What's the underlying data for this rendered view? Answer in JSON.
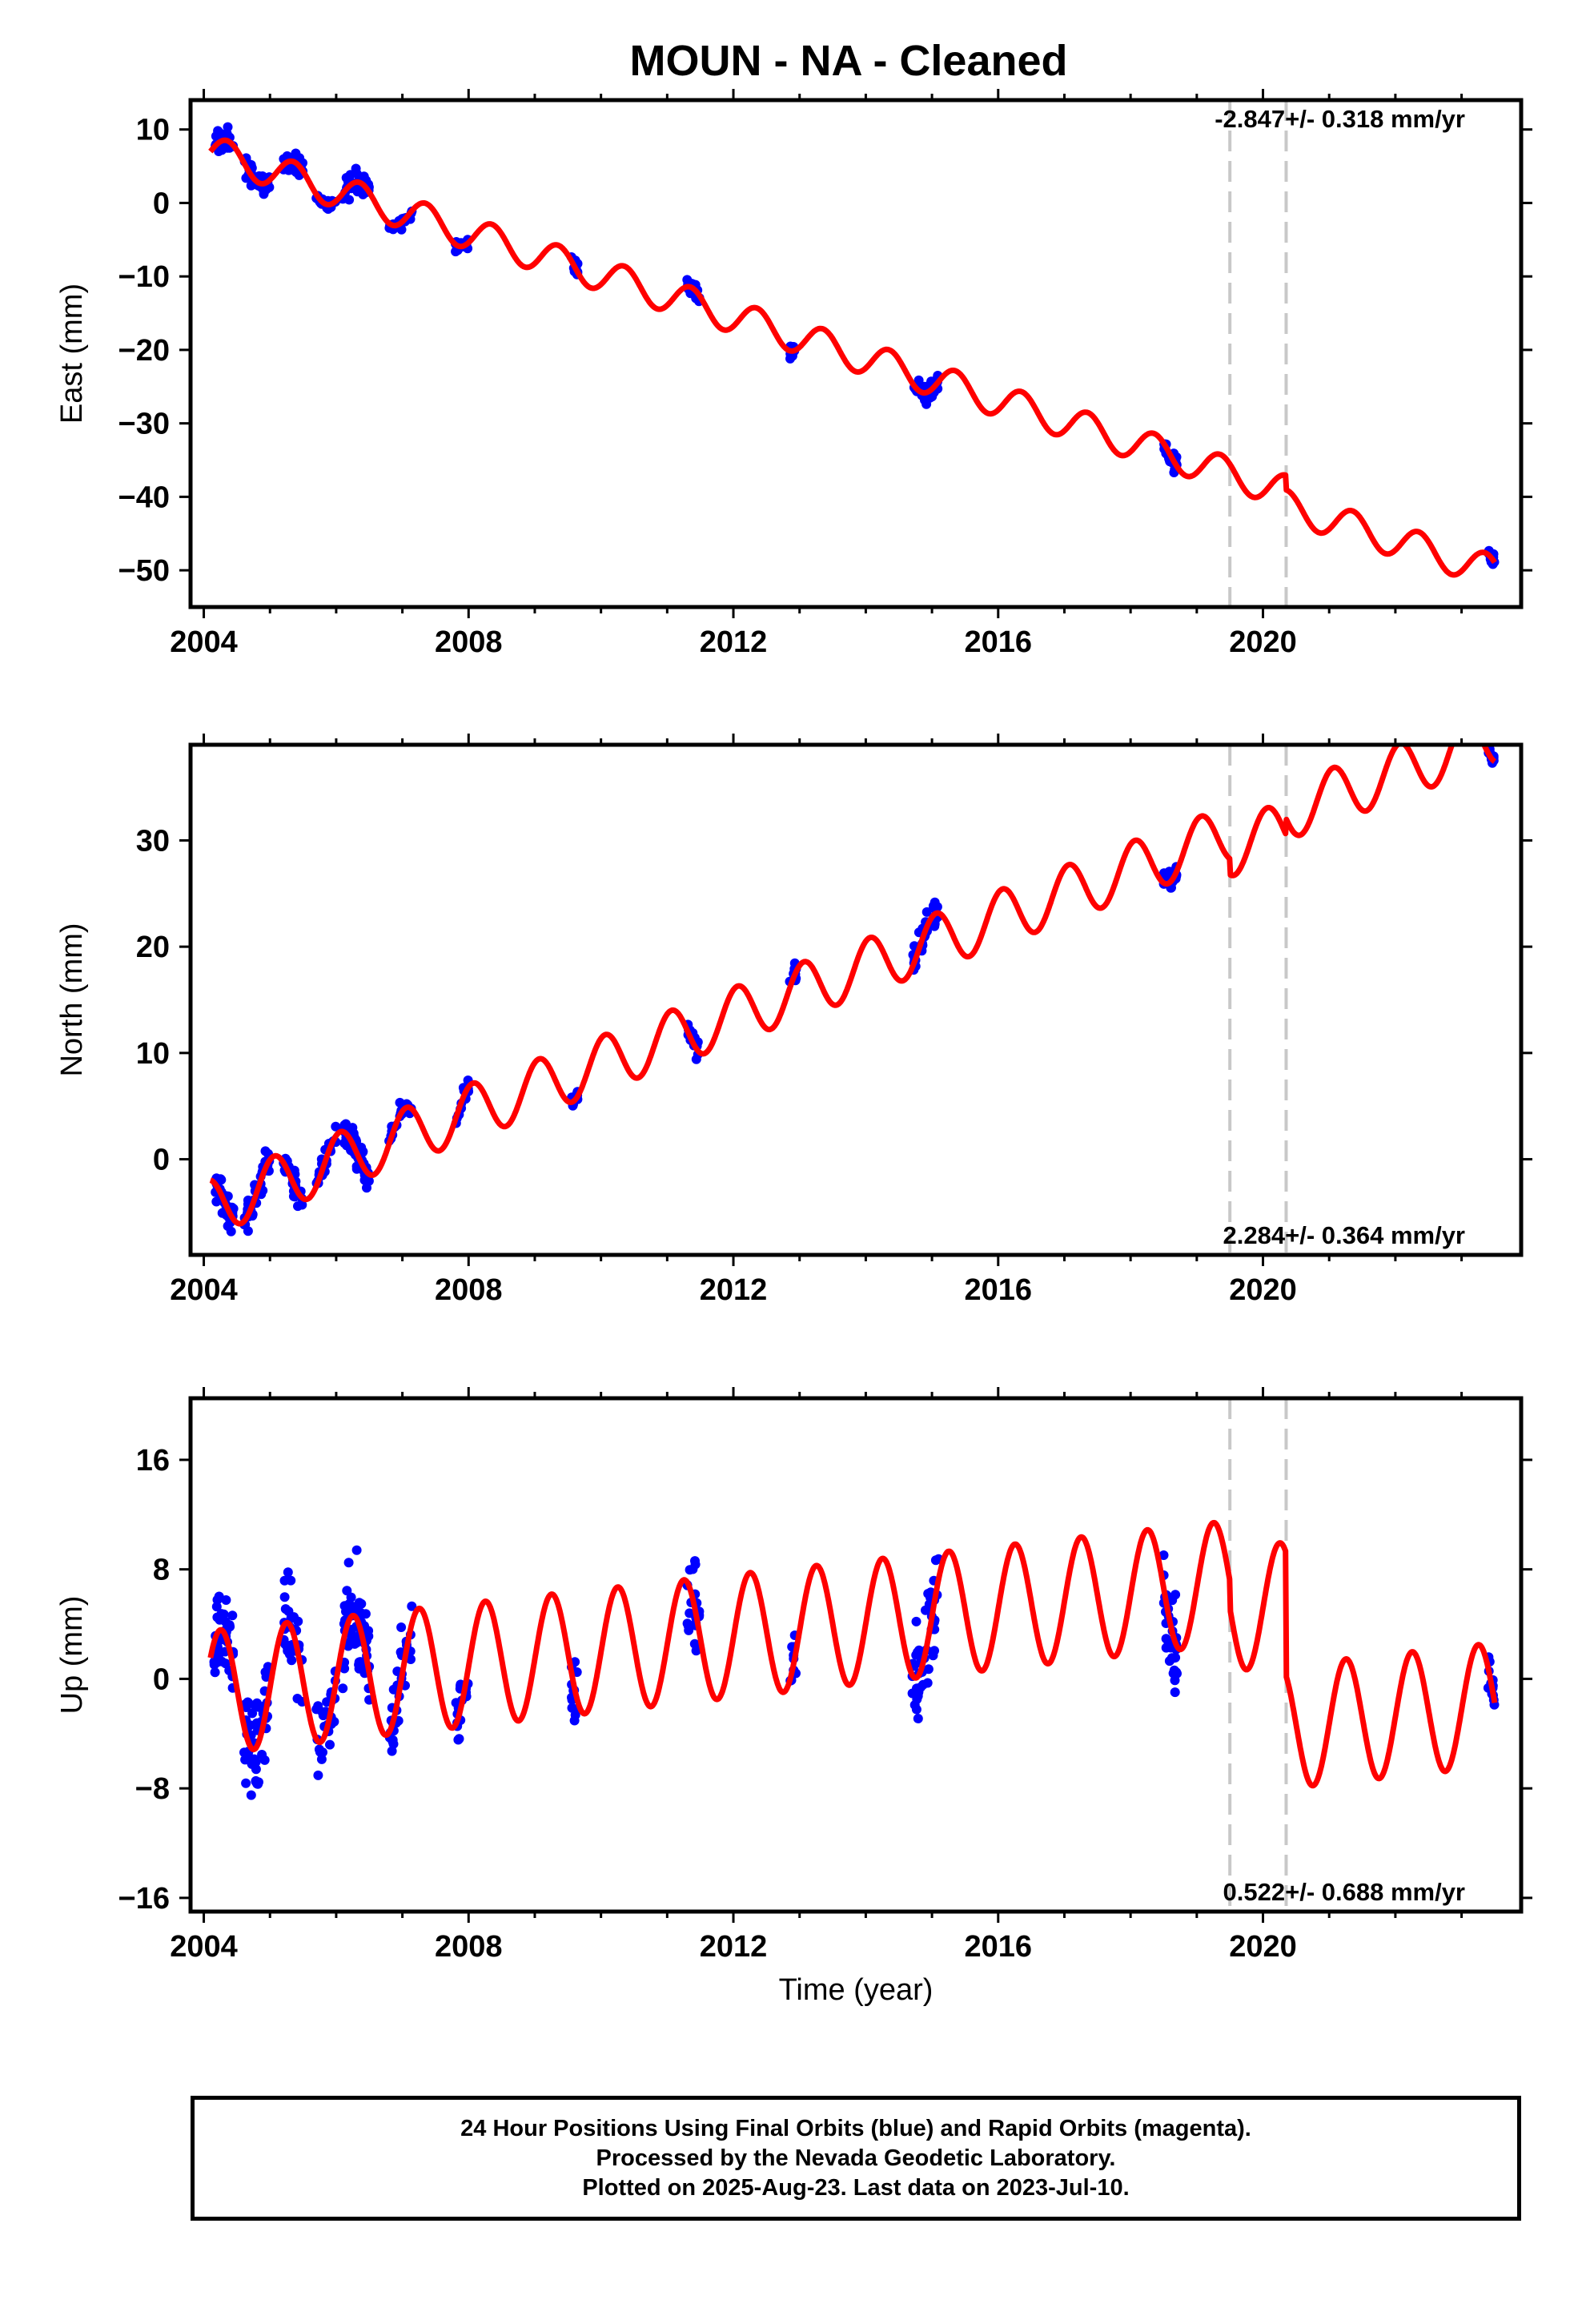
{
  "title": "MOUN  - NA - Cleaned",
  "colors": {
    "data_points": "#0000ff",
    "model_curve": "#ff0000",
    "event_lines": "#c8c8c8",
    "frame": "#000000"
  },
  "x_axis_label": "Time (year)",
  "caption": [
    "24 Hour Positions Using Final Orbits (blue) and Rapid Orbits (magenta).",
    "Processed by the Nevada Geodetic Laboratory.",
    "Plotted on 2025-Aug-23. Last data on 2023-Jul-10."
  ],
  "chart_data": [
    {
      "type": "scatter",
      "component": "east",
      "ylabel": "East (mm)",
      "rate_text": "-2.847+/- 0.318 mm/yr",
      "xlim": [
        2003.8,
        2023.9
      ],
      "ylim": [
        -55,
        14
      ],
      "xticks": [
        2004,
        2008,
        2012,
        2016,
        2020
      ],
      "yticks": [
        10,
        0,
        -10,
        -20,
        -30,
        -40,
        -50
      ],
      "event_lines": [
        2019.5,
        2020.35
      ],
      "model": {
        "v0": 7,
        "t0": 2004.1,
        "rate": -2.847,
        "amp": 2.2,
        "phase": 0,
        "offsets": [
          {
            "t": 2019.5,
            "dy": 0
          },
          {
            "t": 2020.35,
            "dy": -2
          }
        ]
      },
      "clusters": [
        {
          "start": 2004.15,
          "end": 2004.45,
          "n": 40,
          "spread": 2.2
        },
        {
          "start": 2004.6,
          "end": 2005.0,
          "n": 40,
          "spread": 1.8
        },
        {
          "start": 2005.2,
          "end": 2005.5,
          "n": 30,
          "spread": 1.6
        },
        {
          "start": 2005.7,
          "end": 2006.0,
          "n": 20,
          "spread": 1.0
        },
        {
          "start": 2006.1,
          "end": 2006.5,
          "n": 55,
          "spread": 2.0
        },
        {
          "start": 2006.8,
          "end": 2007.15,
          "n": 25,
          "spread": 1.0
        },
        {
          "start": 2007.8,
          "end": 2008.0,
          "n": 15,
          "spread": 1.2
        },
        {
          "start": 2009.55,
          "end": 2009.65,
          "n": 12,
          "spread": 1.6
        },
        {
          "start": 2011.3,
          "end": 2011.5,
          "n": 20,
          "spread": 1.5
        },
        {
          "start": 2012.85,
          "end": 2012.95,
          "n": 10,
          "spread": 1.5
        },
        {
          "start": 2014.7,
          "end": 2015.1,
          "n": 40,
          "spread": 1.6
        },
        {
          "start": 2018.5,
          "end": 2018.7,
          "n": 30,
          "spread": 1.6
        },
        {
          "start": 2023.4,
          "end": 2023.5,
          "n": 12,
          "spread": 1.4
        }
      ]
    },
    {
      "type": "scatter",
      "component": "north",
      "ylabel": "North (mm)",
      "rate_text": "2.284+/- 0.364 mm/yr",
      "xlim": [
        2003.8,
        2023.9
      ],
      "ylim": [
        -9,
        39
      ],
      "xticks": [
        2004,
        2008,
        2012,
        2016,
        2020
      ],
      "yticks": [
        30,
        20,
        10,
        0
      ],
      "event_lines": [
        2019.5,
        2020.35
      ],
      "model": {
        "v0": -4.5,
        "t0": 2004.1,
        "rate": 2.284,
        "amp": 2.6,
        "phase": 1.8,
        "offsets": [
          {
            "t": 2019.5,
            "dy": -1.5
          },
          {
            "t": 2020.35,
            "dy": 1.5
          }
        ]
      },
      "clusters": [
        {
          "start": 2004.15,
          "end": 2004.45,
          "n": 40,
          "spread": 1.8
        },
        {
          "start": 2004.6,
          "end": 2005.0,
          "n": 40,
          "spread": 1.8
        },
        {
          "start": 2005.2,
          "end": 2005.5,
          "n": 30,
          "spread": 1.6
        },
        {
          "start": 2005.7,
          "end": 2006.0,
          "n": 20,
          "spread": 1.4
        },
        {
          "start": 2006.1,
          "end": 2006.5,
          "n": 55,
          "spread": 1.8
        },
        {
          "start": 2006.8,
          "end": 2007.15,
          "n": 25,
          "spread": 1.2
        },
        {
          "start": 2007.8,
          "end": 2008.0,
          "n": 15,
          "spread": 1.2
        },
        {
          "start": 2009.55,
          "end": 2009.65,
          "n": 12,
          "spread": 1.0
        },
        {
          "start": 2011.3,
          "end": 2011.5,
          "n": 20,
          "spread": 1.4
        },
        {
          "start": 2012.85,
          "end": 2012.95,
          "n": 10,
          "spread": 1.2
        },
        {
          "start": 2014.7,
          "end": 2015.1,
          "n": 40,
          "spread": 1.8
        },
        {
          "start": 2018.5,
          "end": 2018.7,
          "n": 30,
          "spread": 1.4
        },
        {
          "start": 2023.4,
          "end": 2023.5,
          "n": 12,
          "spread": 0.8
        }
      ]
    },
    {
      "type": "scatter",
      "component": "up",
      "ylabel": "Up (mm)",
      "rate_text": "0.522+/- 0.688 mm/yr",
      "xlim": [
        2003.8,
        2023.9
      ],
      "ylim": [
        -17,
        20.5
      ],
      "xticks": [
        2004,
        2008,
        2012,
        2016,
        2020
      ],
      "yticks": [
        16,
        8,
        0,
        -8,
        -16
      ],
      "event_lines": [
        2019.5,
        2020.35
      ],
      "model": {
        "v0": -1,
        "t0": 2004.1,
        "rate": 0.522,
        "amp": 4.5,
        "phase": 0.6,
        "offsets": [
          {
            "t": 2019.5,
            "dy": -2
          },
          {
            "t": 2020.35,
            "dy": -9
          }
        ]
      },
      "clusters": [
        {
          "start": 2004.15,
          "end": 2004.45,
          "n": 45,
          "spread": 4.5
        },
        {
          "start": 2004.6,
          "end": 2005.0,
          "n": 50,
          "spread": 5.0
        },
        {
          "start": 2005.2,
          "end": 2005.5,
          "n": 30,
          "spread": 4.5
        },
        {
          "start": 2005.7,
          "end": 2006.0,
          "n": 25,
          "spread": 4.0
        },
        {
          "start": 2006.1,
          "end": 2006.5,
          "n": 60,
          "spread": 5.0
        },
        {
          "start": 2006.8,
          "end": 2007.15,
          "n": 30,
          "spread": 4.0
        },
        {
          "start": 2007.8,
          "end": 2008.0,
          "n": 18,
          "spread": 3.0
        },
        {
          "start": 2009.55,
          "end": 2009.65,
          "n": 12,
          "spread": 4.0
        },
        {
          "start": 2011.3,
          "end": 2011.5,
          "n": 22,
          "spread": 4.0
        },
        {
          "start": 2012.85,
          "end": 2012.95,
          "n": 10,
          "spread": 2.5
        },
        {
          "start": 2014.7,
          "end": 2015.1,
          "n": 45,
          "spread": 5.0
        },
        {
          "start": 2018.5,
          "end": 2018.7,
          "n": 35,
          "spread": 5.0
        },
        {
          "start": 2023.4,
          "end": 2023.5,
          "n": 12,
          "spread": 3.0
        }
      ]
    }
  ]
}
